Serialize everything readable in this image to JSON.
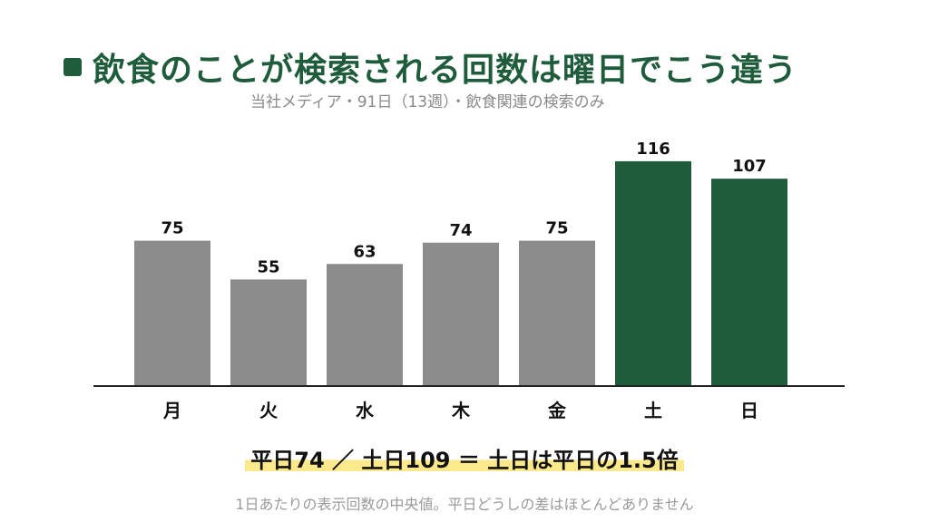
{
  "header": {
    "title": "飲食のことが検索される回数は曜日でこう違う",
    "subtitle": "当社メディア・91日（13週）・飲食関連の検索のみ"
  },
  "chart_data": {
    "type": "bar",
    "categories": [
      "月",
      "火",
      "水",
      "木",
      "金",
      "土",
      "日"
    ],
    "values": [
      75,
      55,
      63,
      74,
      75,
      116,
      107
    ],
    "ylim": [
      0,
      130
    ],
    "grid": false,
    "legend": "none",
    "colors": {
      "weekday": "#8c8c8c",
      "weekend": "#1e5c3c"
    },
    "highlight": [
      "土",
      "日"
    ]
  },
  "summary": "平日74 ／ 土日109 ＝ 土日は平日の1.5倍",
  "note": "1日あたりの表示回数の中央値。平日どうしの差はほとんどありません",
  "colors": {
    "accent": "#1e5c3c",
    "highlight": "#fbe98b"
  }
}
